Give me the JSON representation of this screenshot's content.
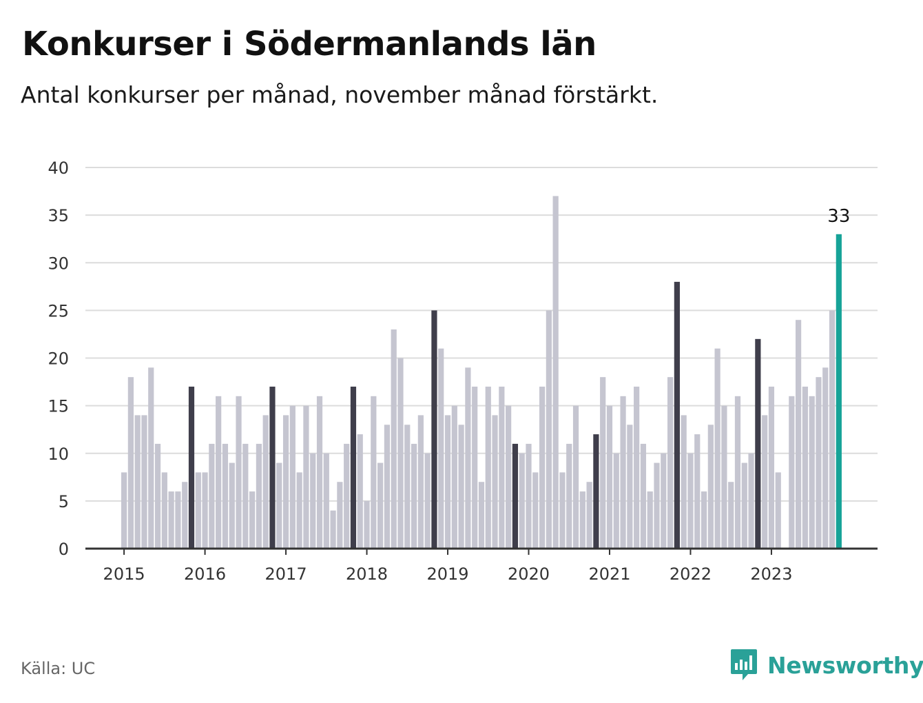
{
  "title": "Konkurser i Södermanlands län",
  "subtitle": "Antal konkurser per månad, november månad förstärkt.",
  "source": "Källa: UC",
  "brand": {
    "name": "Newsworthy",
    "icon": "newsworthy-logo-icon"
  },
  "colors": {
    "bar_default": "#c5c5d0",
    "bar_november": "#3f3e4b",
    "bar_latest": "#17a398",
    "grid": "#dcdcdc",
    "axis": "#333333",
    "brand": "#2aa198"
  },
  "chart_data": {
    "type": "bar",
    "start": "2015-01",
    "highlight_month": "november",
    "values": [
      8,
      18,
      14,
      14,
      19,
      11,
      8,
      6,
      6,
      7,
      17,
      8,
      8,
      11,
      16,
      11,
      9,
      16,
      11,
      6,
      11,
      14,
      17,
      9,
      14,
      15,
      8,
      15,
      10,
      16,
      10,
      4,
      7,
      11,
      17,
      12,
      5,
      16,
      9,
      13,
      23,
      20,
      13,
      11,
      14,
      10,
      25,
      21,
      14,
      15,
      13,
      19,
      17,
      7,
      17,
      14,
      17,
      15,
      11,
      10,
      11,
      8,
      17,
      25,
      37,
      8,
      11,
      15,
      6,
      7,
      12,
      18,
      15,
      10,
      16,
      13,
      17,
      11,
      6,
      9,
      10,
      18,
      28,
      14,
      10,
      12,
      6,
      13,
      21,
      15,
      7,
      16,
      9,
      10,
      22,
      14,
      17,
      8,
      0,
      16,
      24,
      17,
      16,
      18,
      19,
      25,
      33
    ],
    "x_tick_labels": [
      "2015",
      "2016",
      "2017",
      "2018",
      "2019",
      "2020",
      "2021",
      "2022",
      "2023"
    ],
    "ylim": [
      0,
      40
    ],
    "y_ticks": [
      0,
      5,
      10,
      15,
      20,
      25,
      30,
      35,
      40
    ],
    "annotation": {
      "label": "33"
    },
    "grid": true,
    "xlabel": "",
    "ylabel": ""
  }
}
